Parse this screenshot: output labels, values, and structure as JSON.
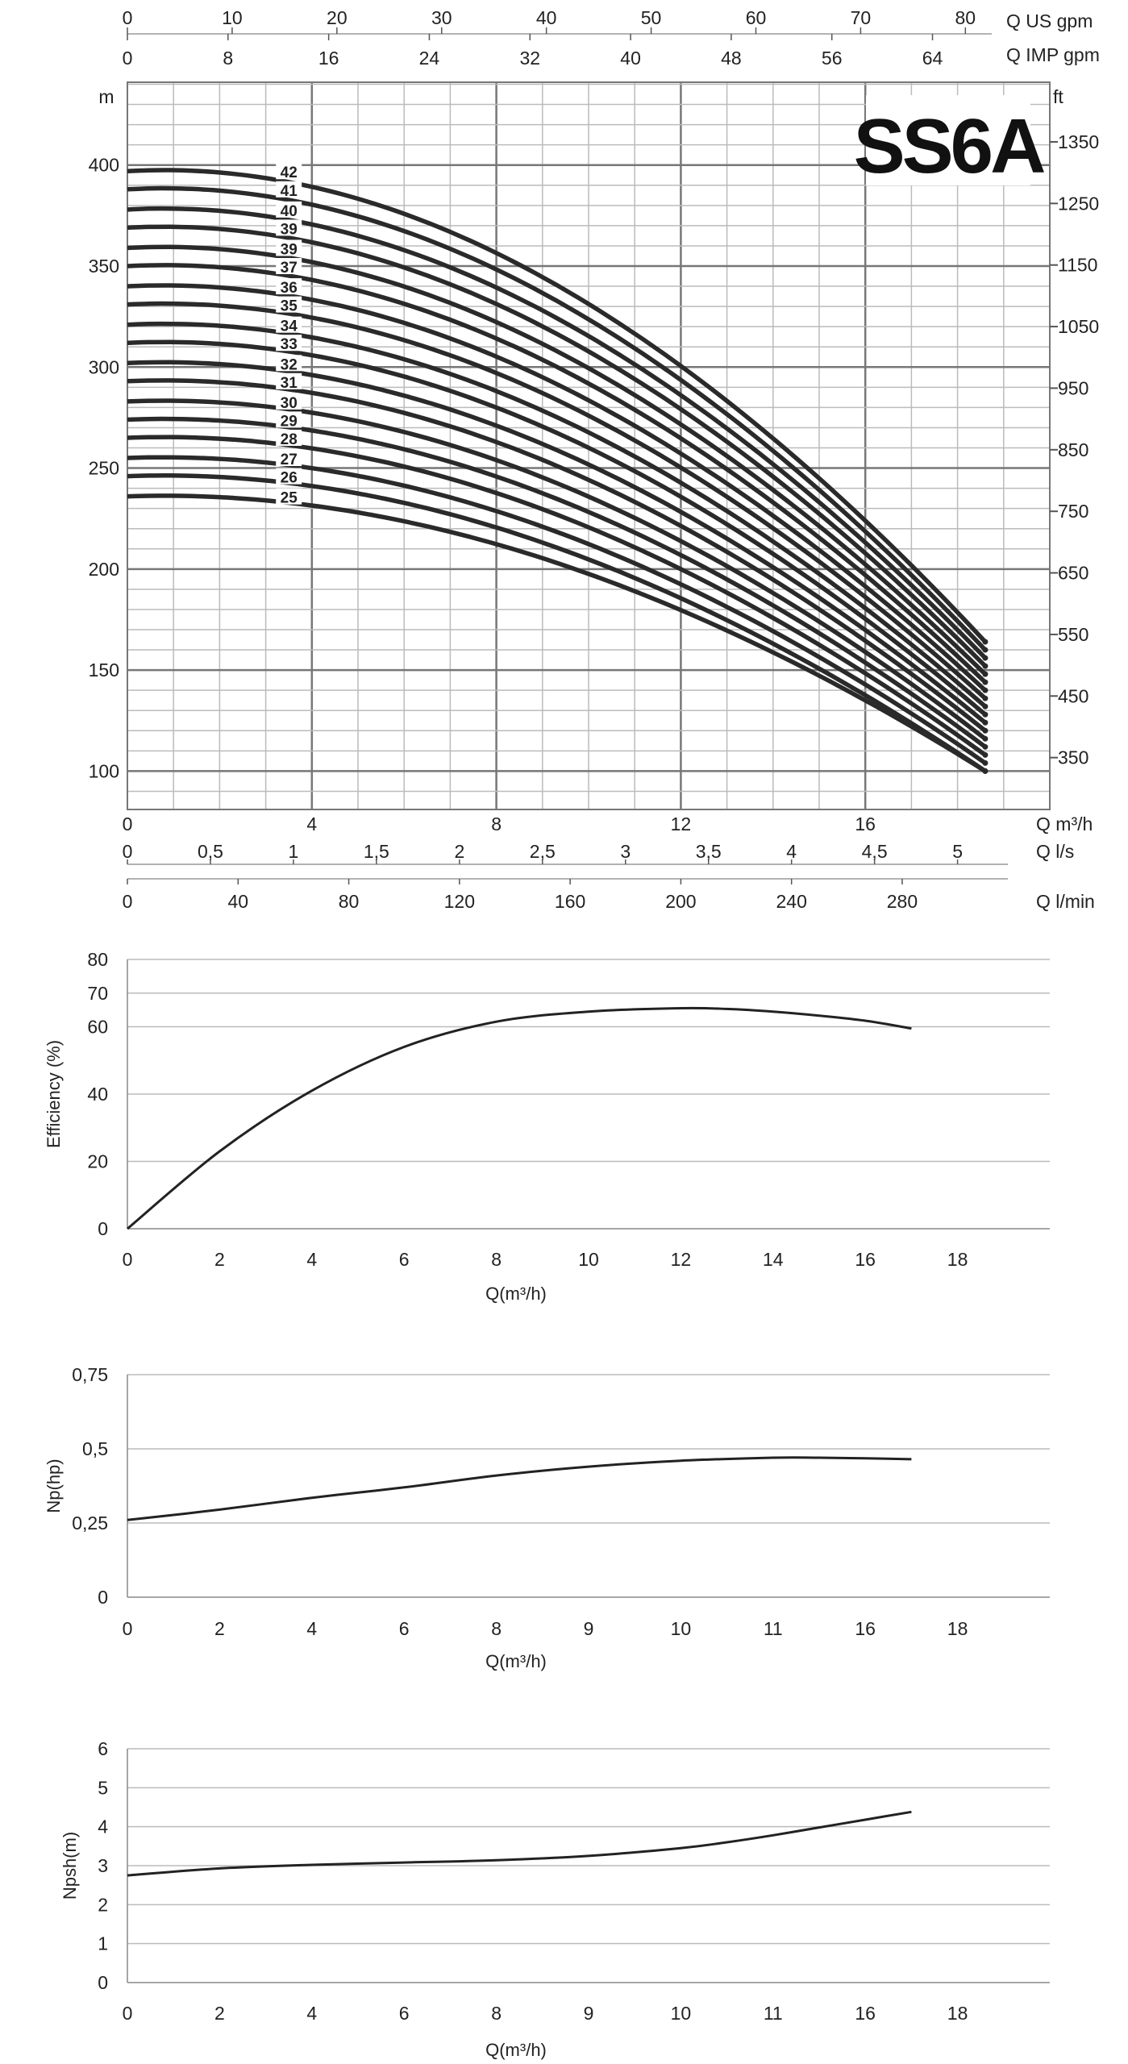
{
  "title": "SS6A",
  "chart_data": [
    {
      "type": "line",
      "name": "head-curves",
      "title": "SS6A",
      "ylabel_left": "m",
      "ylabel_right": "ft",
      "x_primary": {
        "label": "Q m³/h",
        "ticks": [
          0,
          4,
          8,
          12,
          16
        ],
        "range": [
          0,
          20
        ]
      },
      "x_ls": {
        "label": "Q l/s",
        "ticks": [
          "0",
          "0,5",
          "1",
          "1,5",
          "2",
          "2,5",
          "3",
          "3,5",
          "4",
          "4,5",
          "5"
        ],
        "values": [
          0,
          0.5,
          1,
          1.5,
          2,
          2.5,
          3,
          3.5,
          4,
          4.5,
          5
        ]
      },
      "x_lmin": {
        "label": "Q l/min",
        "ticks": [
          0,
          40,
          80,
          120,
          160,
          200,
          240,
          280
        ]
      },
      "x_usgpm": {
        "label": "Q US gpm",
        "ticks": [
          0,
          10,
          20,
          30,
          40,
          50,
          60,
          70,
          80
        ]
      },
      "x_impgpm": {
        "label": "Q IMP gpm",
        "ticks": [
          0,
          8,
          16,
          24,
          32,
          40,
          48,
          56,
          64
        ]
      },
      "y_left": {
        "ticks": [
          100,
          150,
          200,
          250,
          300,
          350,
          400
        ],
        "range": [
          81,
          441
        ]
      },
      "y_right": {
        "ticks": [
          350,
          450,
          550,
          650,
          750,
          850,
          950,
          1050,
          1150,
          1250,
          1350
        ]
      },
      "stage_labels": [
        "42",
        "41",
        "40",
        "39",
        "39",
        "37",
        "36",
        "35",
        "34",
        "33",
        "32",
        "31",
        "30",
        "29",
        "28",
        "27",
        "26",
        "25"
      ],
      "shutoff_head": [
        397,
        388,
        378,
        369,
        359,
        350,
        340,
        331,
        321,
        312,
        302,
        293,
        283,
        274,
        265,
        255,
        246,
        236
      ],
      "end_head": [
        164,
        160,
        156,
        152,
        148,
        144,
        140,
        136,
        132,
        128,
        124,
        120,
        116,
        112,
        108,
        104,
        100,
        100
      ],
      "q_end": 18.6
    },
    {
      "type": "line",
      "name": "efficiency",
      "xlabel": "Q(m³/h)",
      "ylabel": "Efficiency (%)",
      "x_ticks": [
        "0",
        "2",
        "4",
        "6",
        "8",
        "10",
        "12",
        "14",
        "16",
        "18"
      ],
      "y_ticks": [
        "0",
        "20",
        "40",
        "60",
        "70",
        "80"
      ],
      "y_tick_values": [
        0,
        20,
        40,
        60,
        70,
        80
      ],
      "xlim": [
        0,
        20
      ],
      "ylim": [
        0,
        80
      ],
      "x": [
        0,
        2,
        4,
        6,
        8,
        10,
        12,
        13,
        14,
        15,
        16,
        17
      ],
      "y": [
        0,
        23,
        41,
        54,
        61.5,
        64.5,
        65.5,
        65.3,
        64.5,
        63.3,
        61.8,
        59.5
      ]
    },
    {
      "type": "line",
      "name": "power",
      "xlabel": "Q(m³/h)",
      "ylabel": "Np(hp)",
      "x_ticks": [
        "0",
        "2",
        "4",
        "6",
        "8",
        "9",
        "10",
        "11",
        "16",
        "18"
      ],
      "y_ticks": [
        "0",
        "0,25",
        "0,5",
        "0,75"
      ],
      "y_tick_values": [
        0,
        0.25,
        0.5,
        0.75
      ],
      "xlim": [
        0,
        20
      ],
      "ylim": [
        0,
        0.75
      ],
      "x": [
        0,
        2,
        4,
        6,
        8,
        10,
        12,
        14,
        15,
        16,
        17
      ],
      "y": [
        0.26,
        0.295,
        0.335,
        0.37,
        0.41,
        0.44,
        0.46,
        0.47,
        0.47,
        0.468,
        0.465
      ]
    },
    {
      "type": "line",
      "name": "npsh",
      "xlabel": "Q(m³/h)",
      "ylabel": "Npsh(m)",
      "x_ticks": [
        "0",
        "2",
        "4",
        "6",
        "8",
        "9",
        "10",
        "11",
        "16",
        "18"
      ],
      "y_ticks": [
        "0",
        "1",
        "2",
        "3",
        "4",
        "5",
        "6"
      ],
      "y_tick_values": [
        0,
        1,
        2,
        3,
        4,
        5,
        6
      ],
      "xlim": [
        0,
        20
      ],
      "ylim": [
        0,
        6
      ],
      "x": [
        0,
        2,
        4,
        6,
        8,
        10,
        12,
        13,
        14,
        15,
        16,
        17
      ],
      "y": [
        2.75,
        2.93,
        3.02,
        3.08,
        3.14,
        3.25,
        3.45,
        3.6,
        3.78,
        3.98,
        4.18,
        4.38
      ]
    }
  ]
}
